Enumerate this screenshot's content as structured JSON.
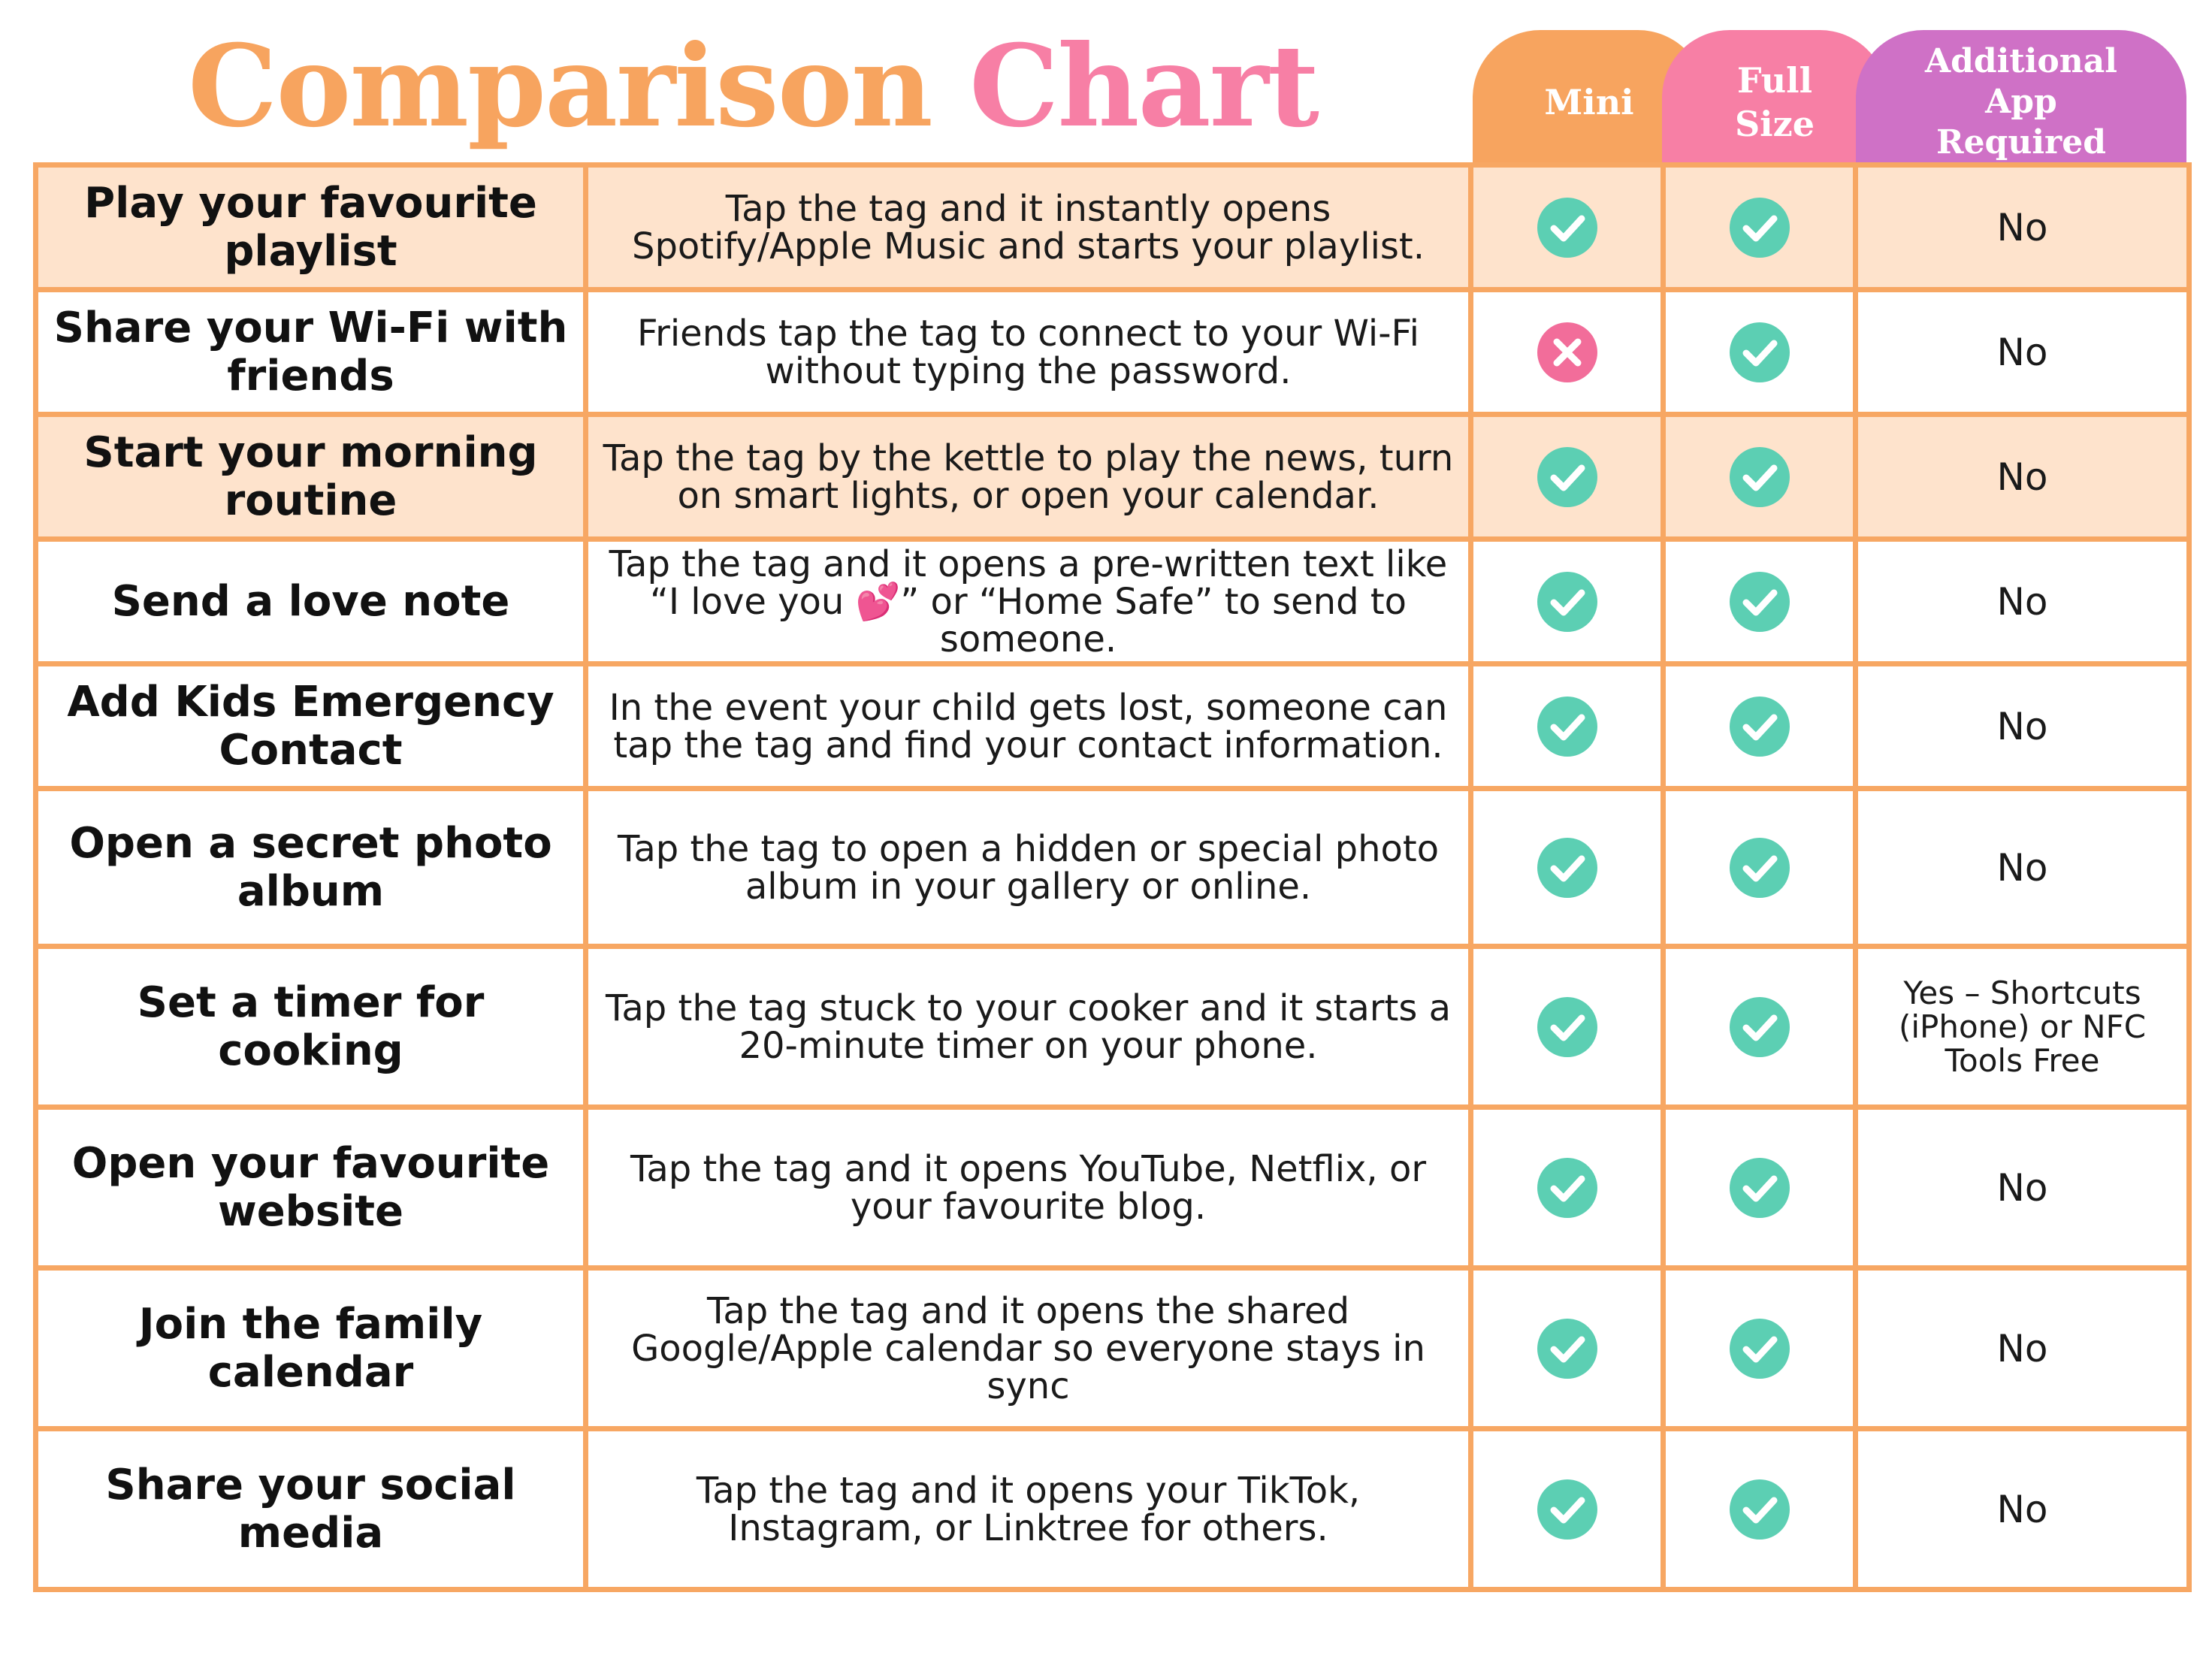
{
  "title": {
    "part1": "Comparison",
    "part2": "Chart"
  },
  "colors": {
    "orange": "#f7a45f",
    "pink": "#f77fa5",
    "purple": "#cf71c6",
    "teal": "#5ccfb3",
    "cross": "#f26d9a",
    "row_shade": "#fee3cc",
    "border": "#f7a763"
  },
  "columns": {
    "mini": "Mini",
    "full": "Full\nSize",
    "app": "Additional\nApp\nRequired"
  },
  "rows": [
    {
      "use": "Play your favourite playlist",
      "desc": "Tap the tag and it instantly opens Spotify/Apple Music and starts your playlist.",
      "mini": "check-icon",
      "full": "check-icon",
      "app": "No",
      "shaded": true
    },
    {
      "use": "Share your Wi-Fi with friends",
      "desc": "Friends tap the tag to connect to your Wi-Fi without typing the password.",
      "mini": "cross-icon",
      "full": "check-icon",
      "app": "No",
      "shaded": false
    },
    {
      "use": "Start your morning routine",
      "desc": "Tap the tag by the kettle to play the news, turn on smart lights, or open your calendar.",
      "mini": "check-icon",
      "full": "check-icon",
      "app": "No",
      "shaded": true
    },
    {
      "use": "Send a love note",
      "desc": "Tap the tag and it opens a pre-written text like “I love you 💕” or “Home Safe” to send to someone.",
      "mini": "check-icon",
      "full": "check-icon",
      "app": "No",
      "shaded": false
    },
    {
      "use": "Add Kids Emergency Contact",
      "desc": "In the event your child gets lost, someone can tap the tag and find your contact information.",
      "mini": "check-icon",
      "full": "check-icon",
      "app": "No",
      "shaded": false
    },
    {
      "use": "Open a secret photo album",
      "desc": "Tap the tag to open a hidden or special photo album in your gallery or online.",
      "mini": "check-icon",
      "full": "check-icon",
      "app": "No",
      "shaded": false
    },
    {
      "use": "Set a timer for cooking",
      "desc": "Tap the tag stuck to your cooker and it starts a 20-minute timer on your phone.",
      "mini": "check-icon",
      "full": "check-icon",
      "app": "Yes – Shortcuts (iPhone) or NFC Tools Free",
      "shaded": false
    },
    {
      "use": "Open your favourite website",
      "desc": "Tap the tag and it opens YouTube, Netflix, or your favourite blog.",
      "mini": "check-icon",
      "full": "check-icon",
      "app": "No",
      "shaded": false
    },
    {
      "use": "Join the family calendar",
      "desc": "Tap the tag and it opens the shared Google/Apple calendar so everyone stays in sync",
      "mini": "check-icon",
      "full": "check-icon",
      "app": "No",
      "shaded": false
    },
    {
      "use": "Share your social media",
      "desc": "Tap the tag and it opens your TikTok, Instagram, or Linktree for others.",
      "mini": "check-icon",
      "full": "check-icon",
      "app": "No",
      "shaded": false
    }
  ]
}
